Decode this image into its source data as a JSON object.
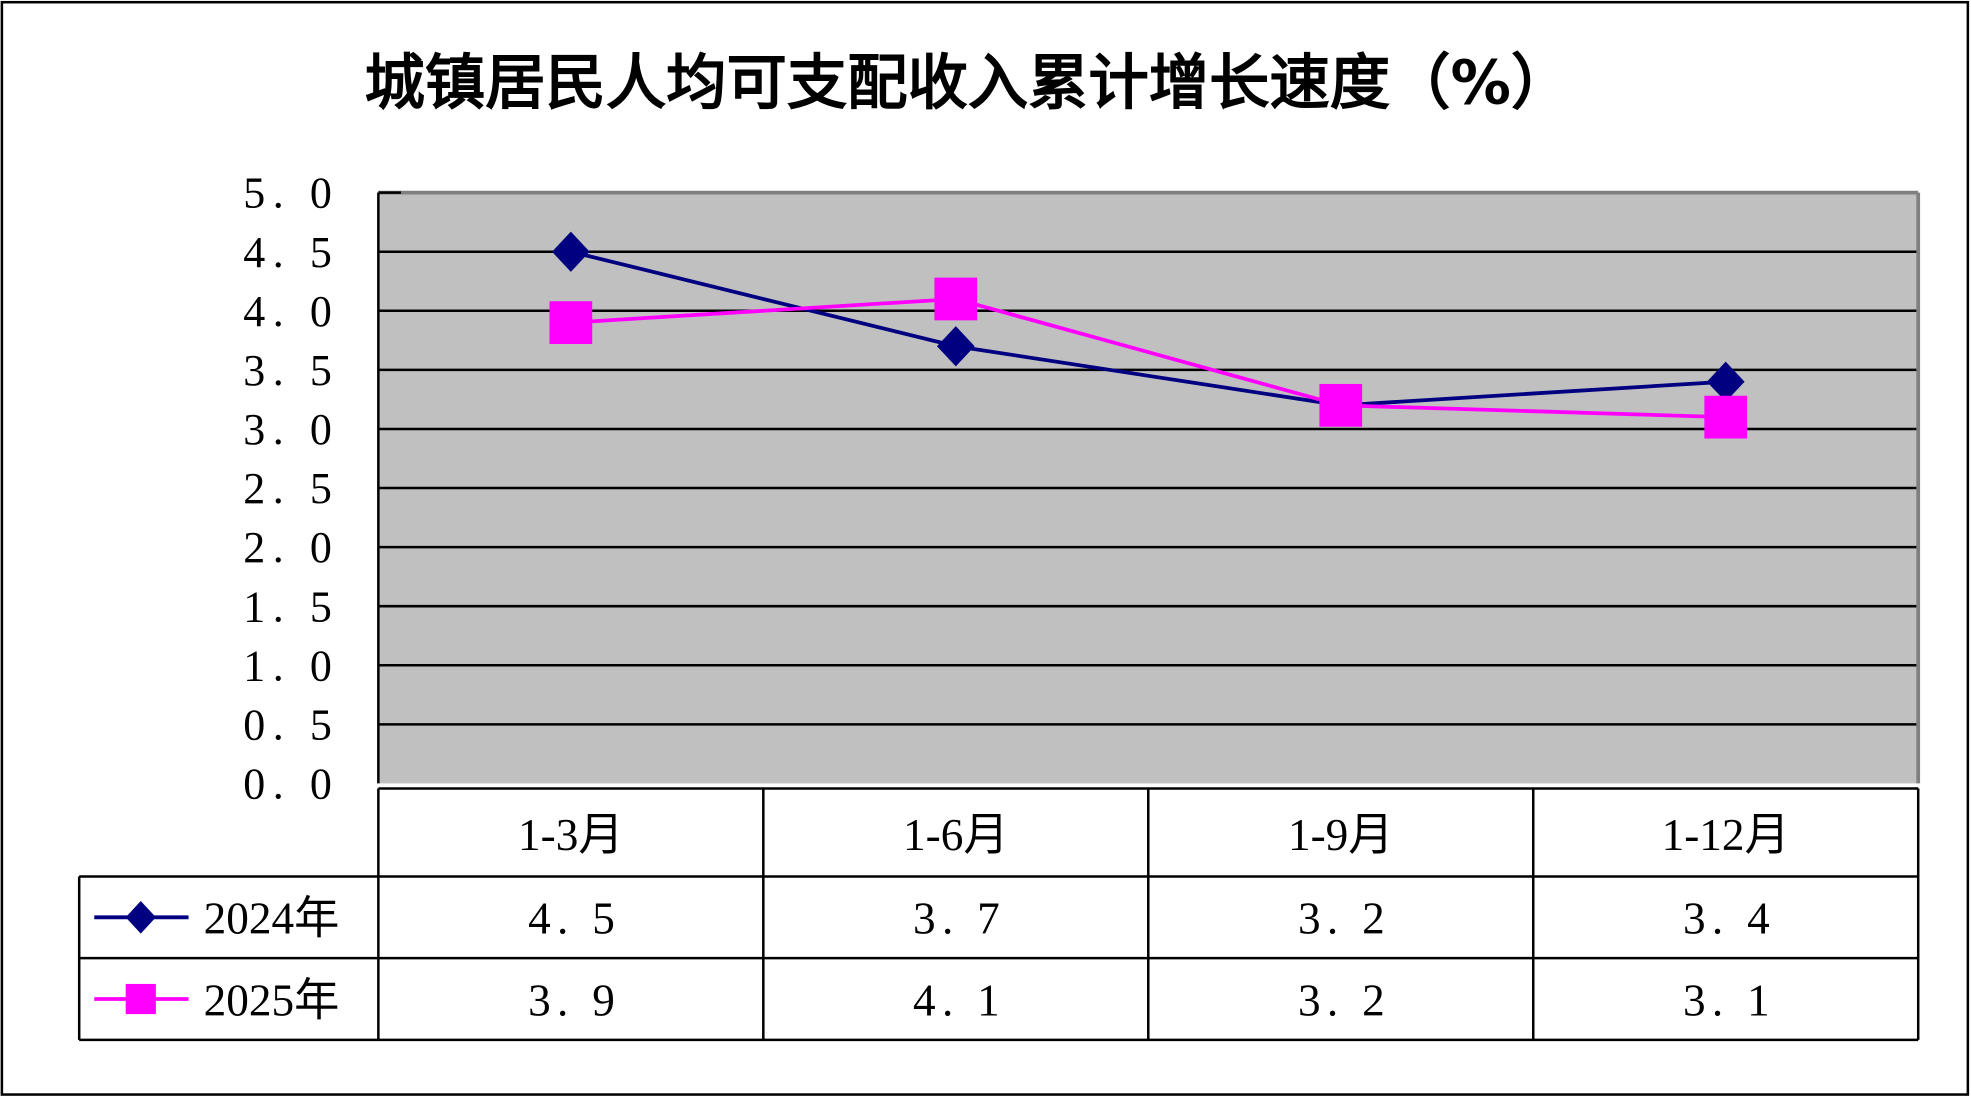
{
  "chart_data": {
    "type": "line",
    "title": "城镇居民人均可支配收入累计增长速度（%）",
    "categories": [
      "1-3月",
      "1-6月",
      "1-9月",
      "1-12月"
    ],
    "series": [
      {
        "name": "2024年",
        "values": [
          4.5,
          3.7,
          3.2,
          3.4
        ],
        "color": "#000080",
        "marker": "diamond",
        "labels": [
          "4. 5",
          "3. 7",
          "3. 2",
          "3. 4"
        ]
      },
      {
        "name": "2025年",
        "values": [
          3.9,
          4.1,
          3.2,
          3.1
        ],
        "color": "#FF00FF",
        "marker": "square",
        "labels": [
          "3. 9",
          "4. 1",
          "3. 2",
          "3. 1"
        ]
      }
    ],
    "ylim": [
      0,
      5
    ],
    "yticks": [
      0,
      0.5,
      1,
      1.5,
      2,
      2.5,
      3,
      3.5,
      4,
      4.5,
      5
    ],
    "ytick_labels": [
      "0. 0",
      "0. 5",
      "1. 0",
      "1. 5",
      "2. 0",
      "2. 5",
      "3. 0",
      "3. 5",
      "4. 0",
      "4. 5",
      "5. 0"
    ],
    "grid": true,
    "plot_background": "#C0C0C0",
    "legend": "data-table"
  }
}
